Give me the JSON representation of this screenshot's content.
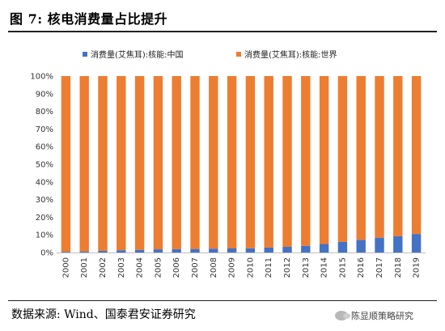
{
  "figure": {
    "title": "图 7:  核电消费量占比提升",
    "source": "数据来源:  Wind、国泰君安证券研究",
    "watermark": "陈显顺策略研究",
    "watermark_icon": "wechat-icon"
  },
  "chart_data": {
    "type": "bar",
    "stacked": true,
    "title": "",
    "xlabel": "",
    "ylabel": "",
    "ylim": [
      0,
      100
    ],
    "yticks": [
      "0%",
      "10%",
      "20%",
      "30%",
      "40%",
      "50%",
      "60%",
      "70%",
      "80%",
      "90%",
      "100%"
    ],
    "categories": [
      "2000",
      "2001",
      "2002",
      "2003",
      "2004",
      "2005",
      "2006",
      "2007",
      "2008",
      "2009",
      "2010",
      "2011",
      "2012",
      "2013",
      "2014",
      "2015",
      "2016",
      "2017",
      "2018",
      "2019"
    ],
    "series": [
      {
        "name": "消费量(艾焦耳):核能:中国",
        "color": "#4472c4",
        "values": [
          0.4,
          0.6,
          0.9,
          1.3,
          1.5,
          1.8,
          1.9,
          2.0,
          2.2,
          2.3,
          2.4,
          2.8,
          3.2,
          3.8,
          4.8,
          6.0,
          7.2,
          8.4,
          9.2,
          10.5
        ]
      },
      {
        "name": "消费量(艾焦耳):核能:世界",
        "color": "#ed7d31",
        "values": [
          99.6,
          99.4,
          99.1,
          98.7,
          98.5,
          98.2,
          98.1,
          98.0,
          97.8,
          97.7,
          97.6,
          97.2,
          96.8,
          96.2,
          95.2,
          94.0,
          92.8,
          91.6,
          90.8,
          89.5
        ]
      }
    ],
    "legend_position": "top",
    "grid": false
  }
}
